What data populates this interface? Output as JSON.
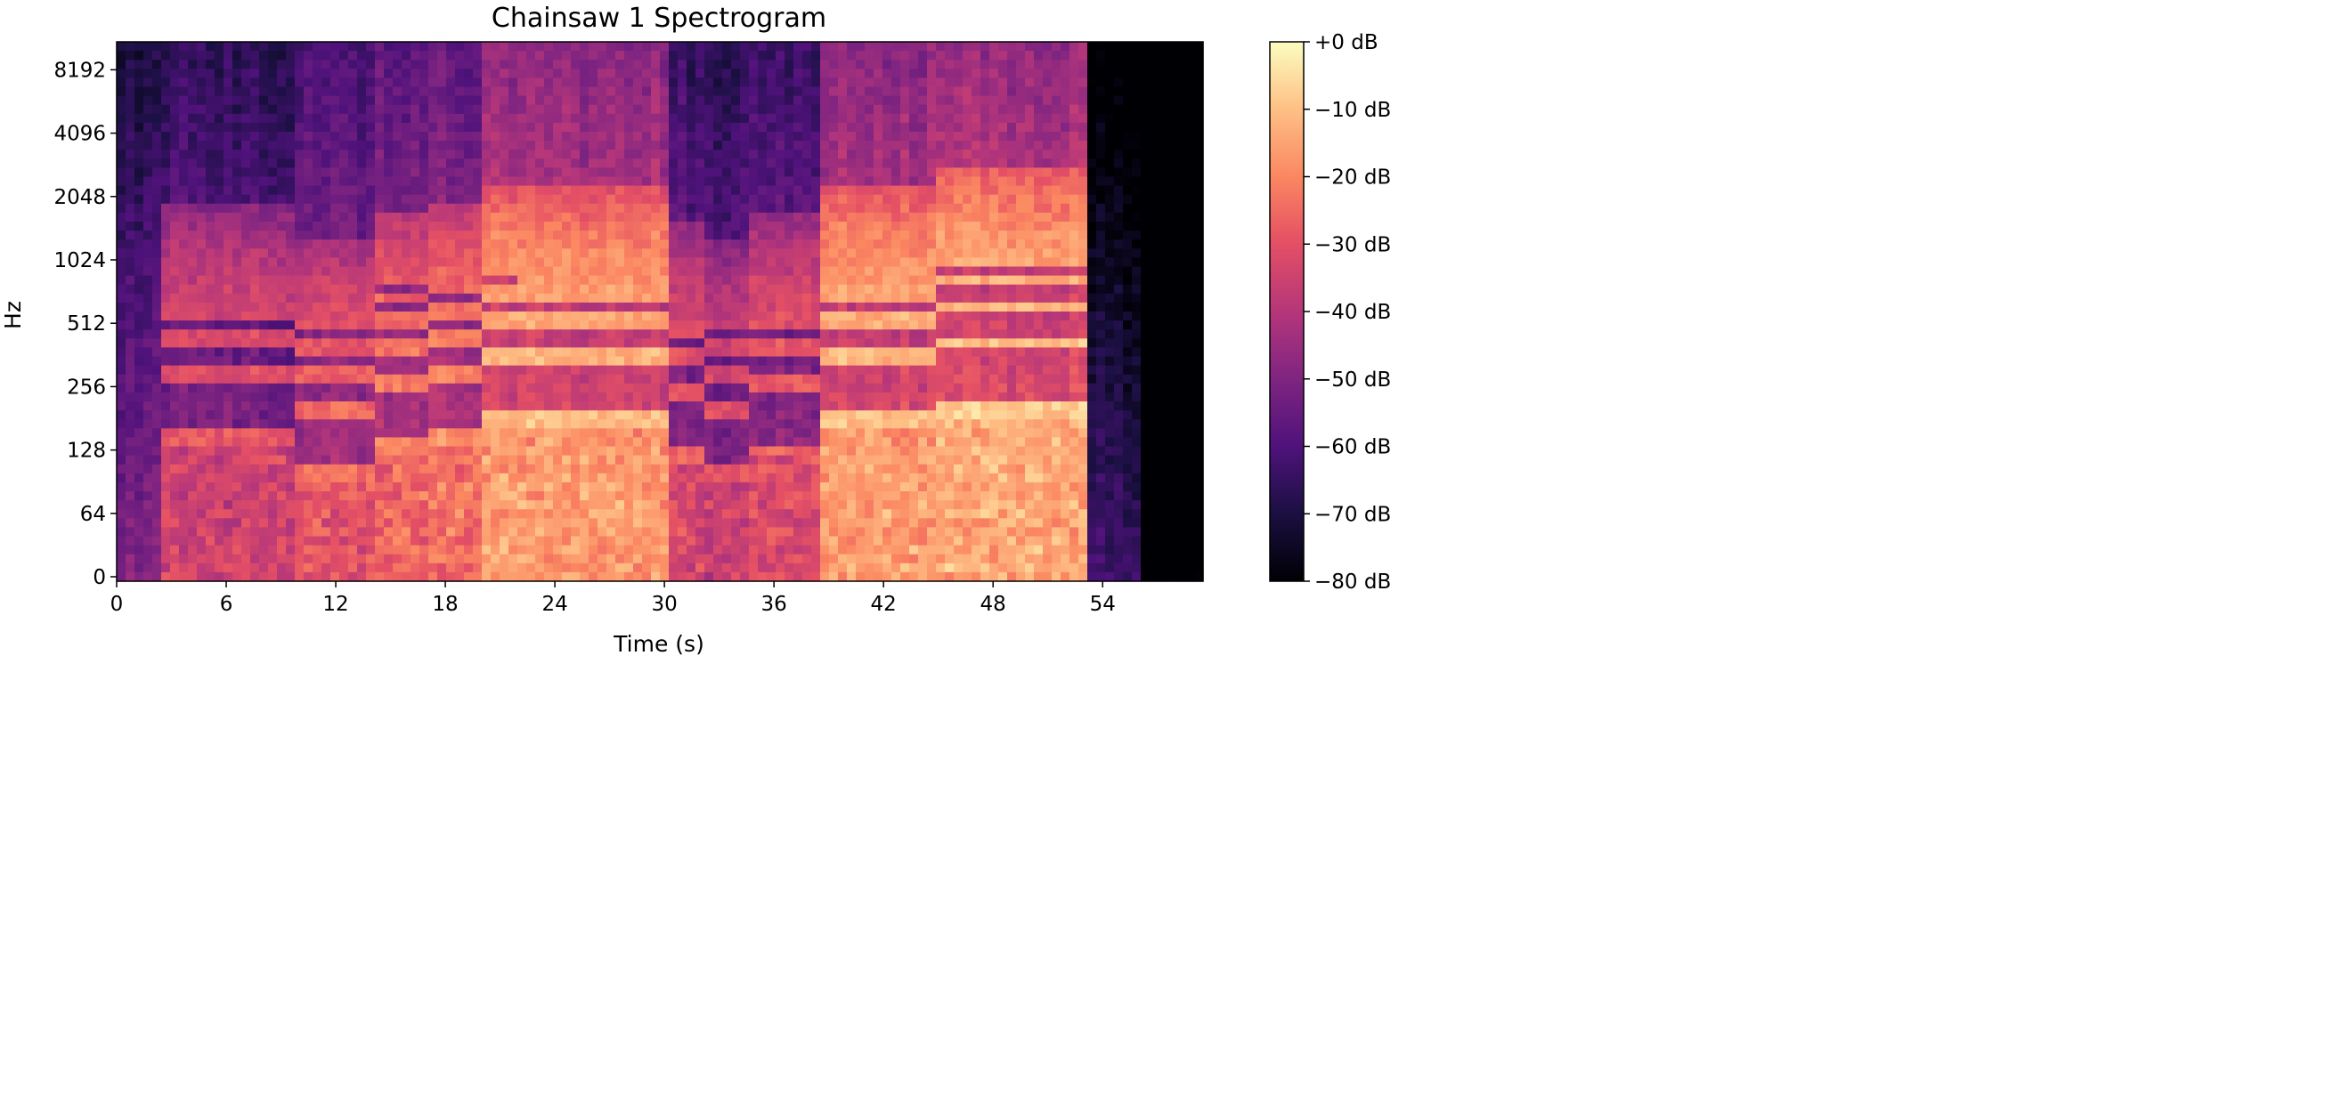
{
  "chart_data": {
    "type": "heatmap",
    "title": "Chainsaw 1 Spectrogram",
    "xlabel": "Time (s)",
    "ylabel": "Hz",
    "xlim": [
      0,
      59.5
    ],
    "x_ticks": [
      0,
      6,
      12,
      18,
      24,
      30,
      36,
      42,
      48,
      54
    ],
    "y_scale": "symlog (base 2)",
    "y_ticks": [
      "0",
      "64",
      "128",
      "256",
      "512",
      "1024",
      "2048",
      "4096",
      "8192"
    ],
    "colorbar": {
      "colormap": "magma",
      "range": [
        -80,
        0
      ],
      "ticks": [
        "+0 dB",
        "−10 dB",
        "−20 dB",
        "−30 dB",
        "−40 dB",
        "−50 dB",
        "−60 dB",
        "−70 dB",
        "−80 dB"
      ]
    },
    "grid": false,
    "segments": [
      {
        "t": [
          0,
          2.2
        ],
        "f0": 0,
        "level_db": -30
      },
      {
        "t": [
          2.2,
          9.6
        ],
        "f0": 145,
        "level_db": -27
      },
      {
        "t": [
          9.6,
          14
        ],
        "f0": 100,
        "level_db": -22
      },
      {
        "t": [
          14,
          17
        ],
        "f0": 136,
        "level_db": -18
      },
      {
        "t": [
          17,
          20
        ],
        "f0": 148,
        "level_db": -16
      },
      {
        "t": [
          20,
          22
        ],
        "f0": 180,
        "level_db": -8
      },
      {
        "t": [
          22,
          30
        ],
        "f0": 178,
        "level_db": -9
      },
      {
        "t": [
          30,
          32
        ],
        "f0": 120,
        "level_db": -25
      },
      {
        "t": [
          32,
          34.5
        ],
        "f0": 100,
        "level_db": -28
      },
      {
        "t": [
          34.5,
          38.5
        ],
        "f0": 128,
        "level_db": -24
      },
      {
        "t": [
          38.5,
          45
        ],
        "f0": 178,
        "level_db": -8
      },
      {
        "t": [
          45,
          53
        ],
        "f0": 205,
        "level_db": -6
      },
      {
        "t": [
          53,
          56
        ],
        "f0": 0,
        "level_db": -45
      },
      {
        "t": [
          56,
          59.5
        ],
        "f0": 0,
        "level_db": -65
      }
    ]
  }
}
